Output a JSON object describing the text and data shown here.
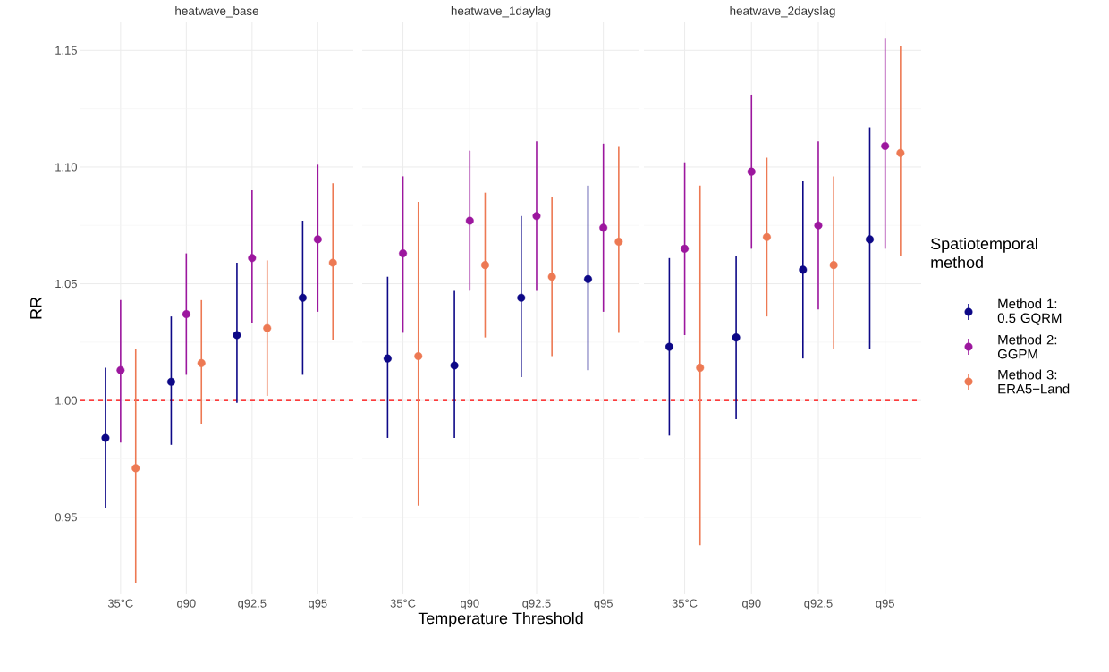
{
  "chart_data": [
    {
      "type": "scatter",
      "title": "heatwave_base",
      "ylabel": "RR",
      "categories": [
        "35°C",
        "q90",
        "q92.5",
        "q95"
      ],
      "marker": "circle",
      "grid": true,
      "legend": false,
      "ylim": [
        0.917,
        1.162
      ],
      "yticks": [
        {
          "value": 0.95,
          "label": "0.95"
        },
        {
          "value": 1.0,
          "label": "1.00"
        },
        {
          "value": 1.05,
          "label": "1.05"
        },
        {
          "value": 1.1,
          "label": "1.10"
        },
        {
          "value": 1.15,
          "label": "1.15"
        }
      ],
      "ref_lines": [
        {
          "axis": "y",
          "value": 1.0,
          "color": "#ff0000",
          "line_style": "dashed"
        }
      ],
      "series": [
        {
          "color": "#0d0887",
          "values": [
            0.984,
            1.008,
            1.028,
            1.044
          ],
          "errors": [
            [
              0.954,
              1.014
            ],
            [
              0.981,
              1.036
            ],
            [
              0.999,
              1.059
            ],
            [
              1.011,
              1.077
            ]
          ]
        },
        {
          "color": "#9c179e",
          "values": [
            1.013,
            1.037,
            1.061,
            1.069
          ],
          "errors": [
            [
              0.982,
              1.043
            ],
            [
              1.011,
              1.063
            ],
            [
              1.033,
              1.09
            ],
            [
              1.038,
              1.101
            ]
          ]
        },
        {
          "color": "#ed7953",
          "values": [
            0.971,
            1.016,
            1.031,
            1.059
          ],
          "errors": [
            [
              0.922,
              1.022
            ],
            [
              0.99,
              1.043
            ],
            [
              1.002,
              1.06
            ],
            [
              1.026,
              1.093
            ]
          ]
        }
      ]
    },
    {
      "type": "scatter",
      "title": "heatwave_1daylag",
      "xlabel": "Temperature Threshold",
      "categories": [
        "35°C",
        "q90",
        "q92.5",
        "q95"
      ],
      "marker": "circle",
      "grid": true,
      "legend": false,
      "tick_labels": "x",
      "ylim": [
        0.917,
        1.162
      ],
      "yticks": [
        0.95,
        1.0,
        1.05,
        1.1,
        1.15
      ],
      "ref_lines": [
        {
          "axis": "y",
          "value": 1.0,
          "color": "#ff0000",
          "line_style": "dashed"
        }
      ],
      "series": [
        {
          "color": "#0d0887",
          "values": [
            1.018,
            1.015,
            1.044,
            1.052
          ],
          "errors": [
            [
              0.984,
              1.053
            ],
            [
              0.984,
              1.047
            ],
            [
              1.01,
              1.079
            ],
            [
              1.013,
              1.092
            ]
          ]
        },
        {
          "color": "#9c179e",
          "values": [
            1.063,
            1.077,
            1.079,
            1.074
          ],
          "errors": [
            [
              1.029,
              1.096
            ],
            [
              1.047,
              1.107
            ],
            [
              1.047,
              1.111
            ],
            [
              1.038,
              1.11
            ]
          ]
        },
        {
          "color": "#ed7953",
          "values": [
            1.019,
            1.058,
            1.053,
            1.068
          ],
          "errors": [
            [
              0.955,
              1.085
            ],
            [
              1.027,
              1.089
            ],
            [
              1.019,
              1.087
            ],
            [
              1.029,
              1.109
            ]
          ]
        }
      ]
    },
    {
      "type": "scatter",
      "title": "heatwave_2dayslag",
      "categories": [
        "35°C",
        "q90",
        "q92.5",
        "q95"
      ],
      "marker": "circle",
      "grid": true,
      "legend": "right",
      "legend_title": "Spatiotemporal method",
      "tick_labels": "x",
      "ylim": [
        0.917,
        1.162
      ],
      "yticks": [
        0.95,
        1.0,
        1.05,
        1.1,
        1.15
      ],
      "ref_lines": [
        {
          "axis": "y",
          "value": 1.0,
          "color": "#ff0000",
          "line_style": "dashed"
        }
      ],
      "series": [
        {
          "name": "Method 1: 0.5 GQRM",
          "color": "#0d0887",
          "values": [
            1.023,
            1.027,
            1.056,
            1.069
          ],
          "errors": [
            [
              0.985,
              1.061
            ],
            [
              0.992,
              1.062
            ],
            [
              1.018,
              1.094
            ],
            [
              1.022,
              1.117
            ]
          ]
        },
        {
          "name": "Method 2: GGPM",
          "color": "#9c179e",
          "values": [
            1.065,
            1.098,
            1.075,
            1.109
          ],
          "errors": [
            [
              1.028,
              1.102
            ],
            [
              1.065,
              1.131
            ],
            [
              1.039,
              1.111
            ],
            [
              1.065,
              1.155
            ]
          ]
        },
        {
          "name": "Method 3: ERA5−Land",
          "color": "#ed7953",
          "values": [
            1.014,
            1.07,
            1.058,
            1.106
          ],
          "errors": [
            [
              0.938,
              1.092
            ],
            [
              1.036,
              1.104
            ],
            [
              1.022,
              1.096
            ],
            [
              1.062,
              1.152
            ]
          ]
        }
      ]
    }
  ]
}
